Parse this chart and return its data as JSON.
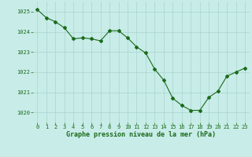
{
  "x": [
    0,
    1,
    2,
    3,
    4,
    5,
    6,
    7,
    8,
    9,
    10,
    11,
    12,
    13,
    14,
    15,
    16,
    17,
    18,
    19,
    20,
    21,
    22,
    23
  ],
  "y": [
    1025.1,
    1024.7,
    1024.5,
    1024.2,
    1023.65,
    1023.7,
    1023.65,
    1023.55,
    1024.05,
    1024.05,
    1023.7,
    1023.25,
    1022.95,
    1022.15,
    1021.6,
    1020.7,
    1020.35,
    1020.1,
    1020.1,
    1020.75,
    1021.05,
    1021.8,
    1022.0,
    1022.2
  ],
  "line_color": "#1a6b1a",
  "marker": "D",
  "marker_size": 2.0,
  "bg_color": "#c8ece8",
  "grid_color": "#aad4ce",
  "xlabel": "Graphe pression niveau de la mer (hPa)",
  "xlabel_color": "#1a6b1a",
  "tick_color": "#1a6b1a",
  "ylim": [
    1019.5,
    1025.5
  ],
  "yticks": [
    1020,
    1021,
    1022,
    1023,
    1024,
    1025
  ],
  "xticks": [
    0,
    1,
    2,
    3,
    4,
    5,
    6,
    7,
    8,
    9,
    10,
    11,
    12,
    13,
    14,
    15,
    16,
    17,
    18,
    19,
    20,
    21,
    22,
    23
  ],
  "tick_fontsize": 5.0,
  "xlabel_fontsize": 6.0
}
